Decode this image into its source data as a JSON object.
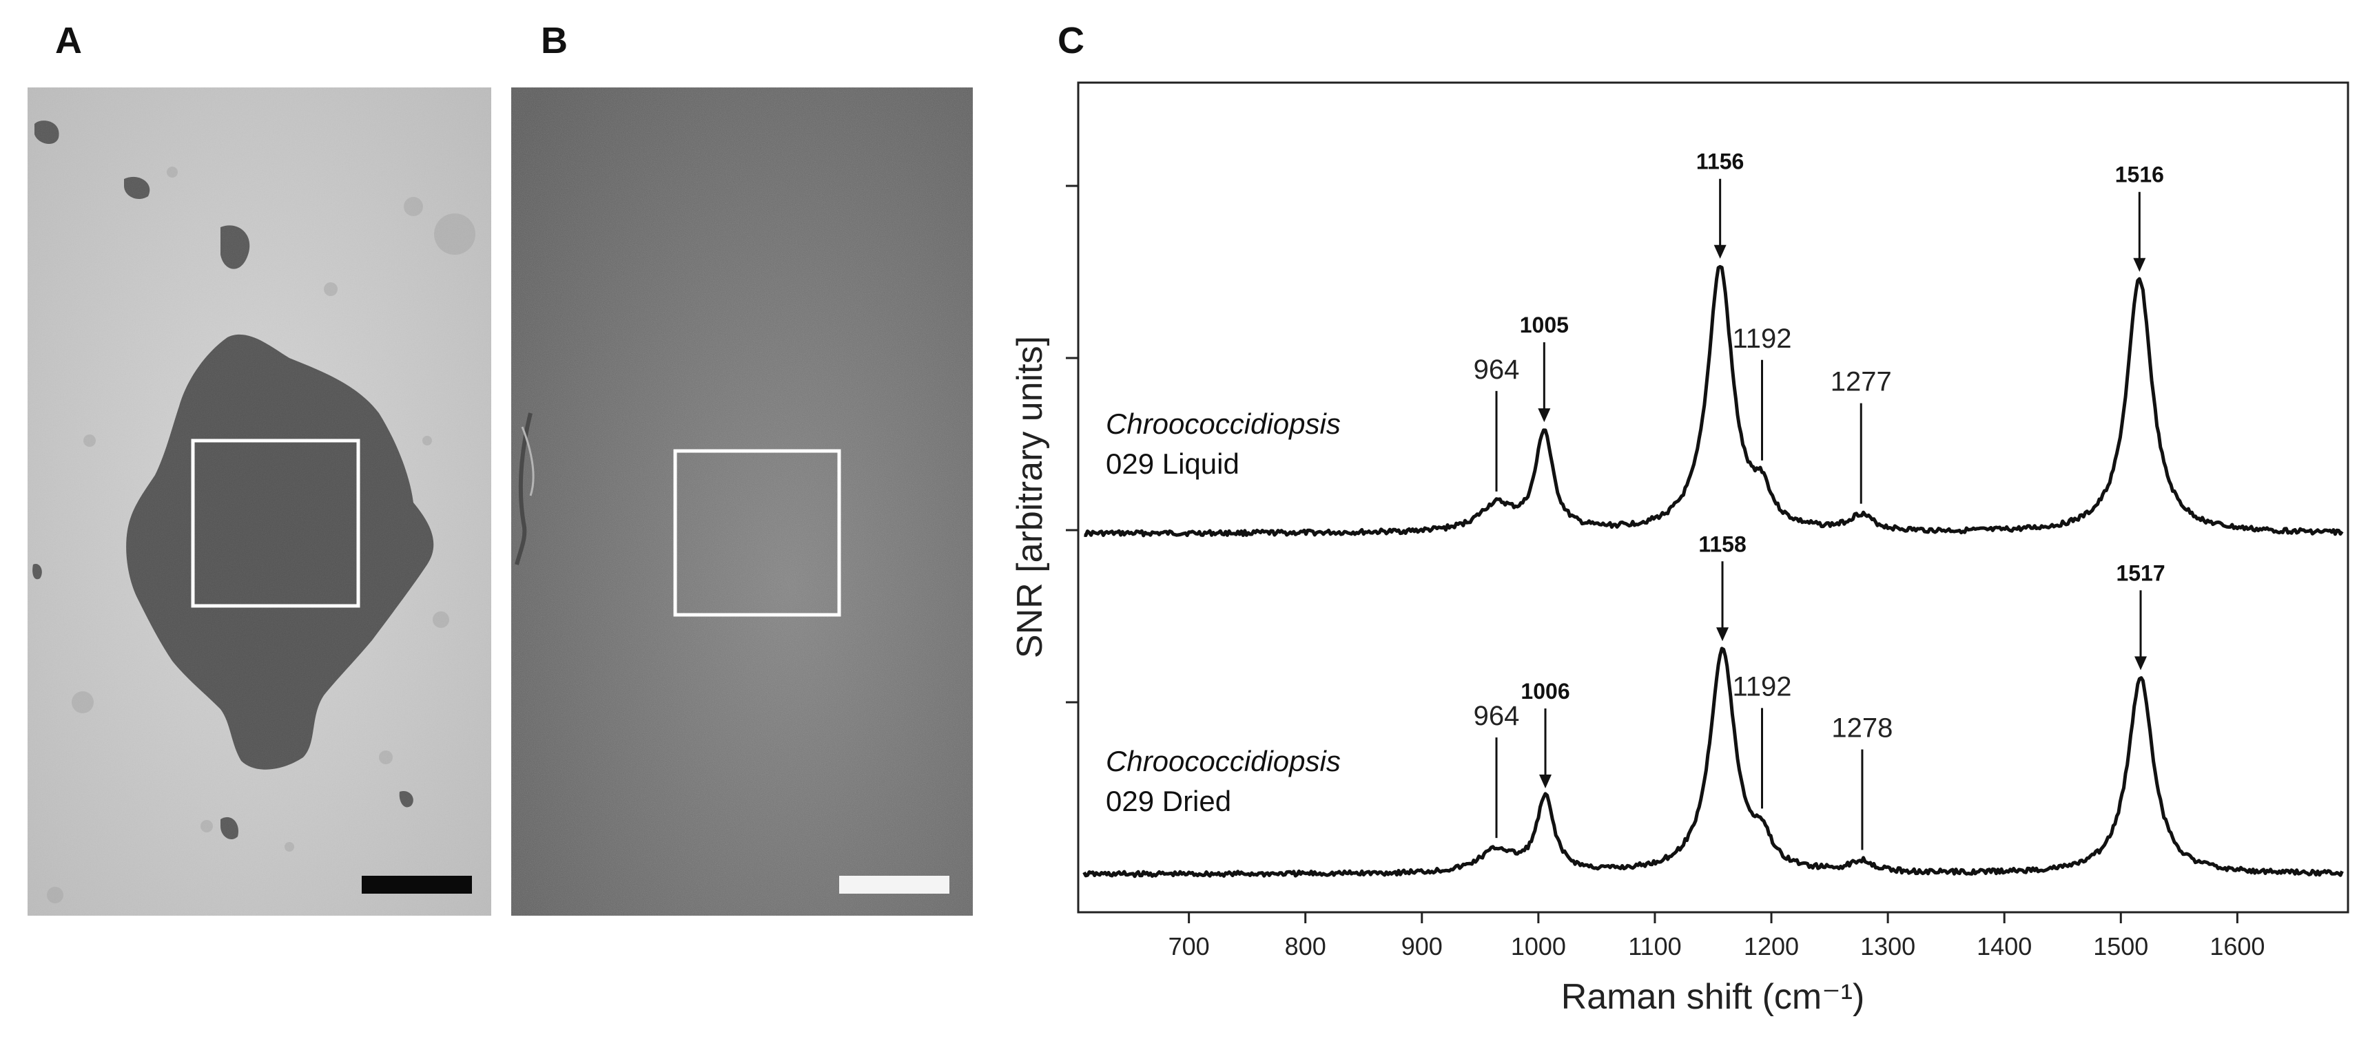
{
  "panels": {
    "a": {
      "letter": "A"
    },
    "b": {
      "letter": "B"
    },
    "c": {
      "letter": "C"
    }
  },
  "colors": {
    "ink": "#111111",
    "micrograph_a_bg": "#c9c9c9",
    "micrograph_b_bg": "#6f6f6f"
  },
  "chart_data": {
    "type": "line",
    "xlabel": "Raman shift (cm⁻¹)",
    "ylabel": "SNR [arbitrary units]",
    "xlim": [
      605,
      1695
    ],
    "xticks": [
      700,
      800,
      900,
      1000,
      1100,
      1200,
      1300,
      1400,
      1500,
      1600
    ],
    "series": [
      {
        "name": "Chroococcidiopsis 029 Liquid",
        "name_italic": "Chroococcidiopsis",
        "name_rest": "029 Liquid",
        "peaks": [
          {
            "x": 964,
            "h": 0.1
          },
          {
            "x": 1005,
            "h": 0.37
          },
          {
            "x": 1156,
            "h": 1.0
          },
          {
            "x": 1192,
            "h": 0.12
          },
          {
            "x": 1277,
            "h": 0.06
          },
          {
            "x": 1516,
            "h": 0.96
          }
        ],
        "annotations": [
          {
            "label": "964",
            "x": 964,
            "bold": false,
            "arrow": false
          },
          {
            "label": "1005",
            "x": 1005,
            "bold": true,
            "arrow": true
          },
          {
            "label": "1156",
            "x": 1156,
            "bold": true,
            "arrow": true
          },
          {
            "label": "1192",
            "x": 1192,
            "bold": false,
            "arrow": false
          },
          {
            "label": "1277",
            "x": 1277,
            "bold": false,
            "arrow": false
          },
          {
            "label": "1516",
            "x": 1516,
            "bold": true,
            "arrow": true
          }
        ]
      },
      {
        "name": "Chroococcidiopsis 029 Dried",
        "name_italic": "Chroococcidiopsis",
        "name_rest": "029 Dried",
        "peaks": [
          {
            "x": 964,
            "h": 0.1
          },
          {
            "x": 1006,
            "h": 0.33
          },
          {
            "x": 1158,
            "h": 1.0
          },
          {
            "x": 1192,
            "h": 0.12
          },
          {
            "x": 1278,
            "h": 0.05
          },
          {
            "x": 1517,
            "h": 0.88
          }
        ],
        "annotations": [
          {
            "label": "964",
            "x": 964,
            "bold": false,
            "arrow": false
          },
          {
            "label": "1006",
            "x": 1006,
            "bold": true,
            "arrow": true
          },
          {
            "label": "1158",
            "x": 1158,
            "bold": true,
            "arrow": true
          },
          {
            "label": "1192",
            "x": 1192,
            "bold": false,
            "arrow": false
          },
          {
            "label": "1278",
            "x": 1278,
            "bold": false,
            "arrow": false
          },
          {
            "label": "1517",
            "x": 1517,
            "bold": true,
            "arrow": true
          }
        ]
      }
    ]
  }
}
